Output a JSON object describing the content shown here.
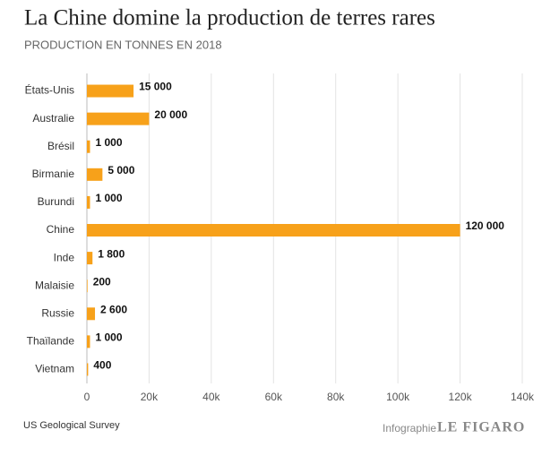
{
  "chart_data": {
    "type": "bar",
    "orientation": "horizontal",
    "title": "La Chine domine la production de terres rares",
    "subtitle": "PRODUCTION EN TONNES EN 2018",
    "categories": [
      "États-Unis",
      "Australie",
      "Brésil",
      "Birmanie",
      "Burundi",
      "Chine",
      "Inde",
      "Malaisie",
      "Russie",
      "Thaïlande",
      "Vietnam"
    ],
    "values": [
      15000,
      20000,
      1000,
      5000,
      1000,
      120000,
      1800,
      200,
      2600,
      1000,
      400
    ],
    "value_labels": [
      "15 000",
      "20 000",
      "1 000",
      "5 000",
      "1 000",
      "120 000",
      "1 800",
      "200",
      "2 600",
      "1 000",
      "400"
    ],
    "color": "#f7a11a",
    "xlim": [
      0,
      140000
    ],
    "xticks": [
      0,
      {
        "value": 20000,
        "label": "20k"
      },
      {
        "value": 40000,
        "label": "40k"
      },
      {
        "value": 60000,
        "label": "60k"
      },
      {
        "value": 80000,
        "label": "80k"
      },
      {
        "value": 100000,
        "label": "100k"
      },
      {
        "value": 120000,
        "label": "120k"
      },
      {
        "value": 140000,
        "label": "140k"
      }
    ],
    "grid": true
  },
  "footer": {
    "source": "US Geological Survey",
    "credit_label": "Infographie",
    "brand": "LE FIGARO"
  }
}
